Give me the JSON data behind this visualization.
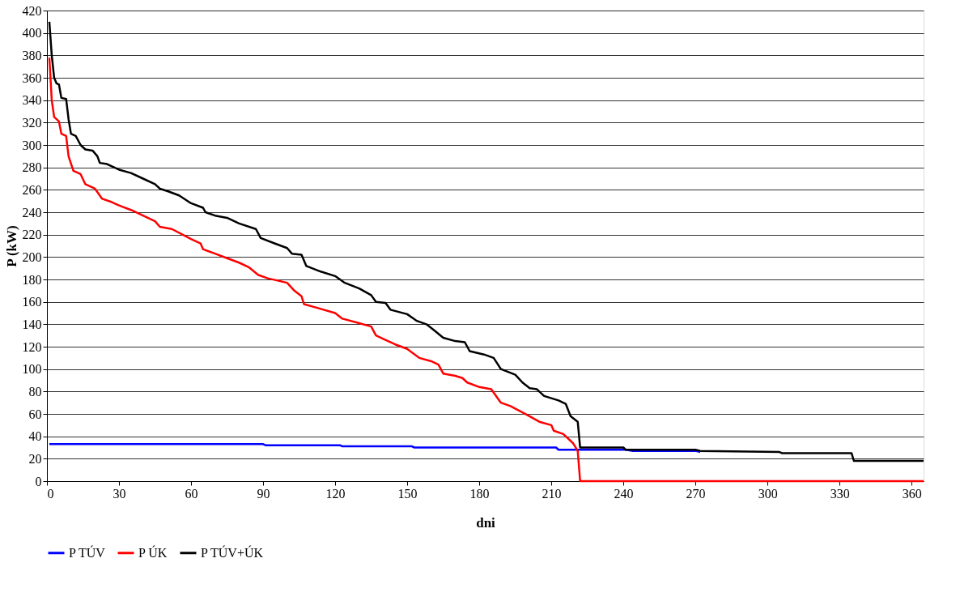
{
  "chart_data": {
    "type": "line",
    "xlabel": "dni",
    "ylabel": "P (kW)",
    "xlim": [
      0,
      365
    ],
    "xticks": [
      0,
      30,
      60,
      90,
      120,
      150,
      180,
      210,
      240,
      270,
      300,
      330,
      360
    ],
    "ylim": [
      0,
      420
    ],
    "yticks": [
      0,
      20,
      40,
      60,
      80,
      100,
      120,
      140,
      160,
      180,
      200,
      220,
      240,
      260,
      280,
      300,
      320,
      340,
      360,
      380,
      400,
      420
    ],
    "grid": "y",
    "legend": "bottom",
    "marker": "none",
    "line_style": "solid",
    "series": [
      {
        "name": "P TÚV",
        "color": "#0000ff",
        "x": [
          1,
          90,
          91,
          122,
          123,
          152,
          153,
          212,
          213,
          241,
          244,
          270,
          272
        ],
        "values": [
          33,
          33,
          32,
          32,
          31,
          31,
          30,
          30,
          28,
          28,
          27,
          27,
          26
        ]
      },
      {
        "name": "P ÚK",
        "color": "#ff0000",
        "x": [
          1,
          2,
          3,
          5,
          6,
          8,
          9,
          11,
          14,
          16,
          18,
          20,
          23,
          27,
          30,
          35,
          40,
          45,
          47,
          52,
          60,
          64,
          65,
          70,
          75,
          80,
          84,
          88,
          92,
          100,
          103,
          106,
          107,
          112,
          120,
          123,
          130,
          135,
          137,
          140,
          145,
          150,
          155,
          160,
          163,
          165,
          170,
          173,
          175,
          180,
          185,
          189,
          193,
          200,
          205,
          210,
          211,
          215,
          219,
          221,
          222,
          365
        ],
        "values": [
          378,
          340,
          325,
          321,
          310,
          308,
          290,
          277,
          274,
          265,
          263,
          261,
          252,
          249,
          246,
          242,
          237,
          232,
          227,
          225,
          216,
          212,
          207,
          203,
          199,
          195,
          191,
          184,
          181,
          177,
          170,
          165,
          158,
          155,
          150,
          145,
          141,
          138,
          130,
          127,
          122,
          118,
          110,
          107,
          104,
          96,
          94,
          92,
          88,
          84,
          82,
          70,
          67,
          59,
          53,
          50,
          45,
          42,
          34,
          27,
          0,
          0
        ]
      },
      {
        "name": "P TÚV+ÚK",
        "color": "#000000",
        "x": [
          1,
          2,
          3,
          4,
          5,
          6,
          8,
          9,
          10,
          12,
          14,
          16,
          19,
          21,
          22,
          25,
          30,
          35,
          40,
          45,
          47,
          50,
          55,
          60,
          65,
          66,
          70,
          75,
          80,
          87,
          89,
          95,
          100,
          102,
          106,
          108,
          114,
          120,
          124,
          130,
          135,
          137,
          141,
          143,
          150,
          154,
          158,
          161,
          165,
          170,
          174,
          176,
          182,
          186,
          189,
          195,
          198,
          201,
          204,
          207,
          213,
          216,
          218,
          221,
          222,
          240,
          241,
          270,
          272,
          305,
          306,
          335,
          336,
          365
        ],
        "values": [
          410,
          380,
          360,
          355,
          354,
          342,
          341,
          323,
          310,
          308,
          300,
          296,
          295,
          290,
          284,
          283,
          278,
          275,
          270,
          265,
          261,
          259,
          255,
          248,
          244,
          240,
          237,
          235,
          230,
          225,
          217,
          212,
          208,
          203,
          202,
          192,
          187,
          183,
          177,
          172,
          166,
          160,
          159,
          153,
          149,
          143,
          140,
          135,
          128,
          125,
          124,
          116,
          113,
          110,
          100,
          95,
          88,
          83,
          82,
          76,
          72,
          69,
          58,
          53,
          30,
          30,
          28,
          28,
          27,
          26,
          25,
          25,
          18,
          18
        ]
      }
    ]
  }
}
